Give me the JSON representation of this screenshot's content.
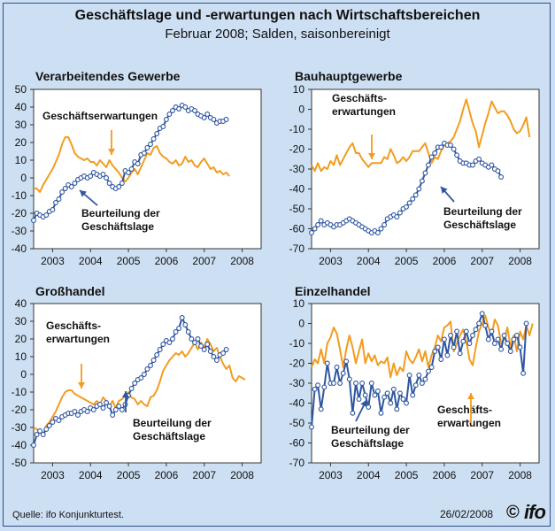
{
  "header": {
    "title": "Geschäftslage und -erwartungen nach Wirtschaftsbereichen",
    "subtitle": "Februar 2008; Salden, saisonbereinigt"
  },
  "footer": {
    "source": "Quelle: ifo Konjunkturtest.",
    "date": "26/02/2008",
    "copyright": "©",
    "logo": "ifo"
  },
  "colors": {
    "lage": "#2f56a0",
    "erwartungen": "#f39c1f",
    "background": "#cde0f3",
    "plot": "#ffffff"
  },
  "chart_data": [
    {
      "type": "line",
      "title": "Verarbeitendes Gewerbe",
      "ylim": [
        -40,
        50
      ],
      "yticks": [
        -40,
        -30,
        -20,
        -10,
        0,
        10,
        20,
        30,
        40,
        50
      ],
      "xlim": [
        2002.5,
        2008.5
      ],
      "xticks": [
        "2003",
        "2004",
        "2005",
        "2006",
        "2007",
        "2008"
      ],
      "grid": false,
      "annotations": [
        {
          "text": "Geschäftserwartungen",
          "x": 2004.1,
          "y": 31
        },
        {
          "text": "Beurteilung der Geschäftslage",
          "x": 2004.2,
          "y": -24
        }
      ],
      "series": [
        {
          "name": "Geschäftserwartungen",
          "color": "#f39c1f",
          "markers": false,
          "x_start": 2002.5,
          "step": 0.0833,
          "values": [
            -6,
            -6,
            -8,
            -4,
            -1,
            2,
            5,
            9,
            13,
            19,
            23,
            23,
            19,
            14,
            12,
            11,
            10,
            11,
            9,
            9,
            7,
            10,
            8,
            6,
            10,
            7,
            5,
            3,
            0,
            -2,
            0,
            3,
            5,
            2,
            6,
            10,
            14,
            13,
            17,
            18,
            14,
            12,
            11,
            9,
            8,
            10,
            7,
            8,
            12,
            9,
            10,
            7,
            6,
            9,
            11,
            8,
            5,
            6,
            3,
            4,
            2,
            3,
            1
          ]
        },
        {
          "name": "Beurteilung der Geschäftslage",
          "color": "#2f56a0",
          "markers": true,
          "x_start": 2002.5,
          "step": 0.0833,
          "values": [
            -24,
            -20,
            -21,
            -22,
            -21,
            -19,
            -18,
            -14,
            -12,
            -8,
            -6,
            -4,
            -5,
            -3,
            -1,
            0,
            1,
            0,
            1,
            3,
            2,
            1,
            2,
            0,
            -3,
            -5,
            -6,
            -5,
            -3,
            4,
            3,
            5,
            9,
            8,
            13,
            14,
            17,
            19,
            22,
            25,
            28,
            29,
            33,
            36,
            38,
            40,
            39,
            41,
            40,
            38,
            39,
            38,
            36,
            35,
            34,
            36,
            34,
            33,
            31,
            32,
            32,
            33
          ]
        }
      ]
    },
    {
      "type": "line",
      "title": "Bauhauptgewerbe",
      "ylim": [
        -70,
        10
      ],
      "yticks": [
        -70,
        -60,
        -50,
        -40,
        -30,
        -20,
        -10,
        0,
        10
      ],
      "xlim": [
        2002.5,
        2008.5
      ],
      "xticks": [
        "2003",
        "2004",
        "2005",
        "2006",
        "2007",
        "2008"
      ],
      "grid": false,
      "annotations": [
        {
          "text": "Geschäfts- erwartungen",
          "x": 2003.9,
          "y": -2
        },
        {
          "text": "Beurteilung der Geschäftslage",
          "x": 2006.2,
          "y": -53
        }
      ],
      "series": [
        {
          "name": "Geschäftserwartungen",
          "color": "#f39c1f",
          "markers": false,
          "x_start": 2002.5,
          "step": 0.0833,
          "values": [
            -28,
            -31,
            -27,
            -31,
            -29,
            -30,
            -26,
            -28,
            -23,
            -28,
            -25,
            -22,
            -19,
            -17,
            -22,
            -22,
            -25,
            -27,
            -29,
            -27,
            -27,
            -27,
            -27,
            -24,
            -25,
            -20,
            -23,
            -27,
            -26,
            -24,
            -26,
            -24,
            -21,
            -21,
            -21,
            -19,
            -17,
            -22,
            -27,
            -24,
            -25,
            -21,
            -18,
            -17,
            -16,
            -14,
            -10,
            -6,
            0,
            5,
            -1,
            -7,
            -11,
            -19,
            -13,
            -7,
            -2,
            4,
            1,
            -2,
            -1,
            -1,
            -3,
            -6,
            -10,
            -12,
            -11,
            -8,
            -4,
            -14
          ]
        },
        {
          "name": "Beurteilung der Geschäftslage",
          "color": "#2f56a0",
          "markers": true,
          "x_start": 2002.5,
          "step": 0.0833,
          "values": [
            -62,
            -60,
            -58,
            -56,
            -58,
            -57,
            -58,
            -59,
            -58,
            -58,
            -57,
            -56,
            -55,
            -56,
            -57,
            -58,
            -59,
            -60,
            -61,
            -62,
            -61,
            -62,
            -60,
            -58,
            -55,
            -54,
            -53,
            -54,
            -52,
            -50,
            -49,
            -47,
            -45,
            -43,
            -40,
            -36,
            -32,
            -28,
            -24,
            -22,
            -19,
            -19,
            -17,
            -18,
            -18,
            -20,
            -23,
            -26,
            -27,
            -27,
            -28,
            -28,
            -26,
            -25,
            -27,
            -28,
            -29,
            -28,
            -30,
            -31,
            -34
          ]
        }
      ]
    },
    {
      "type": "line",
      "title": "Großhandel",
      "ylim": [
        -50,
        40
      ],
      "yticks": [
        -50,
        -40,
        -30,
        -20,
        -10,
        0,
        10,
        20,
        30,
        40
      ],
      "xlim": [
        2002.5,
        2008.5
      ],
      "xticks": [
        "2003",
        "2004",
        "2005",
        "2006",
        "2007",
        "2008"
      ],
      "grid": false,
      "annotations": [
        {
          "text": "Geschäfts- erwartungen",
          "x": 2003.4,
          "y": 24
        },
        {
          "text": "Beurteilung der Geschäftslage",
          "x": 2006.0,
          "y": -30
        }
      ],
      "series": [
        {
          "name": "Geschäftserwartungen",
          "color": "#f39c1f",
          "markers": false,
          "x_start": 2002.5,
          "step": 0.0833,
          "values": [
            -30,
            -31,
            -33,
            -34,
            -29,
            -27,
            -24,
            -21,
            -17,
            -13,
            -10,
            -9,
            -9,
            -11,
            -12,
            -13,
            -14,
            -15,
            -16,
            -17,
            -15,
            -17,
            -13,
            -15,
            -18,
            -15,
            -19,
            -15,
            -14,
            -12,
            -10,
            -13,
            -14,
            -17,
            -15,
            -17,
            -18,
            -13,
            -12,
            -9,
            -4,
            2,
            5,
            8,
            10,
            12,
            11,
            13,
            10,
            12,
            15,
            18,
            14,
            18,
            15,
            20,
            17,
            13,
            15,
            10,
            6,
            3,
            5,
            -2,
            -4,
            -1,
            -2,
            -3
          ]
        },
        {
          "name": "Beurteilung der Geschäftslage",
          "color": "#2f56a0",
          "markers": true,
          "x_start": 2002.5,
          "step": 0.0833,
          "values": [
            -40,
            -34,
            -32,
            -34,
            -31,
            -29,
            -27,
            -25,
            -26,
            -24,
            -23,
            -22,
            -22,
            -21,
            -23,
            -21,
            -20,
            -21,
            -19,
            -20,
            -18,
            -17,
            -19,
            -16,
            -18,
            -23,
            -20,
            -18,
            -20,
            -17,
            -12,
            -8,
            -5,
            -3,
            -2,
            0,
            3,
            5,
            8,
            11,
            14,
            17,
            19,
            18,
            20,
            24,
            26,
            32,
            28,
            24,
            20,
            18,
            20,
            16,
            14,
            17,
            13,
            10,
            8,
            11,
            12,
            14
          ]
        }
      ]
    },
    {
      "type": "line",
      "title": "Einzelhandel",
      "ylim": [
        -70,
        10
      ],
      "yticks": [
        -70,
        -60,
        -50,
        -40,
        -30,
        -20,
        -10,
        0,
        10
      ],
      "xlim": [
        2002.5,
        2008.5
      ],
      "xticks": [
        "2003",
        "2004",
        "2005",
        "2006",
        "2007",
        "2008"
      ],
      "grid": false,
      "annotations": [
        {
          "text": "Beurteilung der Geschäftslage",
          "x": 2004.2,
          "y": -47
        },
        {
          "text": "Geschäfts- erwartungen",
          "x": 2006.8,
          "y": -42
        }
      ],
      "series": [
        {
          "name": "Geschäftserwartungen",
          "color": "#f39c1f",
          "markers": false,
          "x_start": 2002.5,
          "step": 0.0833,
          "values": [
            -22,
            -18,
            -20,
            -13,
            -20,
            -10,
            -7,
            -2,
            -5,
            -13,
            -22,
            -13,
            -6,
            -12,
            -20,
            -14,
            -8,
            -20,
            -15,
            -19,
            -16,
            -21,
            -19,
            -20,
            -17,
            -27,
            -20,
            -26,
            -22,
            -24,
            -14,
            -18,
            -20,
            -17,
            -13,
            -19,
            -14,
            -22,
            -16,
            -12,
            -6,
            -9,
            -2,
            -1,
            1,
            -14,
            -10,
            -6,
            -3,
            -9,
            -18,
            -21,
            -12,
            -4,
            0,
            4,
            -2,
            -6,
            2,
            -1,
            -10,
            -8,
            -2,
            -12,
            -6,
            -14,
            -4,
            -8,
            -1,
            -6,
            0
          ]
        },
        {
          "name": "Beurteilung der Geschäftslage",
          "color": "#2f56a0",
          "markers": true,
          "x_start": 2002.5,
          "step": 0.0833,
          "values": [
            -52,
            -33,
            -31,
            -43,
            -32,
            -20,
            -30,
            -30,
            -22,
            -30,
            -25,
            -19,
            -28,
            -45,
            -30,
            -38,
            -30,
            -36,
            -42,
            -30,
            -36,
            -34,
            -45,
            -37,
            -35,
            -40,
            -33,
            -43,
            -35,
            -38,
            -40,
            -26,
            -36,
            -31,
            -26,
            -30,
            -28,
            -24,
            -22,
            -14,
            -12,
            -18,
            -8,
            -16,
            -6,
            -12,
            -4,
            -15,
            -9,
            -4,
            -10,
            -6,
            -3,
            0,
            5,
            -1,
            -8,
            -4,
            -10,
            -8,
            -13,
            -6,
            -10,
            -14,
            -8,
            -6,
            -12,
            -25,
            0
          ]
        }
      ]
    }
  ]
}
